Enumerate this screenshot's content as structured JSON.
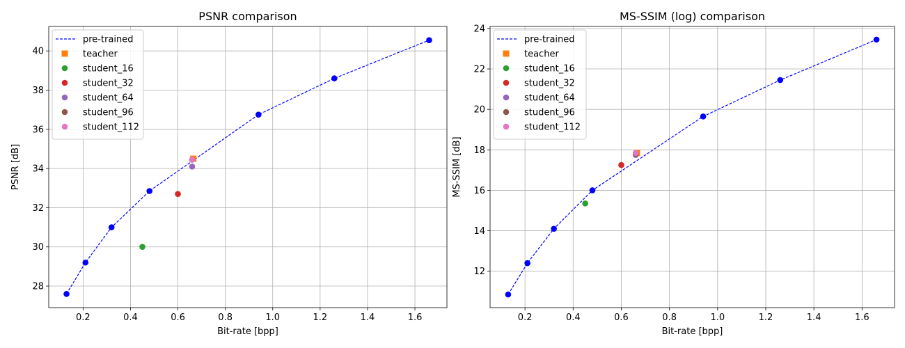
{
  "colors": {
    "pretrained": "#0000ff",
    "teacher": "#ff7f0e",
    "student_16": "#2ca02c",
    "student_32": "#d62728",
    "student_64": "#9467bd",
    "student_96": "#8c564b",
    "student_112": "#e377c2",
    "grid": "#b0b0b0"
  },
  "chart_data": [
    {
      "type": "scatter",
      "title": "PSNR comparison",
      "xlabel": "Bit-rate [bpp]",
      "ylabel": "PSNR [dB]",
      "xlim": [
        0.055,
        1.735
      ],
      "ylim": [
        26.9,
        41.25
      ],
      "xticks": [
        0.2,
        0.4,
        0.6,
        0.8,
        1.0,
        1.2,
        1.4,
        1.6
      ],
      "xtick_labels": [
        "0.2",
        "0.4",
        "0.6",
        "0.8",
        "1.0",
        "1.2",
        "1.4",
        "1.6"
      ],
      "yticks": [
        28,
        30,
        32,
        34,
        36,
        38,
        40
      ],
      "ytick_labels": [
        "28",
        "30",
        "32",
        "34",
        "36",
        "38",
        "40"
      ],
      "grid": true,
      "legend_position": "top-left",
      "series": [
        {
          "name": "pre-trained",
          "color_key": "pretrained",
          "style": "dashed-line-markers",
          "marker": "circle",
          "x": [
            0.13,
            0.21,
            0.32,
            0.48,
            0.94,
            1.26,
            1.66
          ],
          "y": [
            27.6,
            29.2,
            31.0,
            32.85,
            36.75,
            38.6,
            40.55
          ]
        },
        {
          "name": "teacher",
          "color_key": "teacher",
          "style": "marker",
          "marker": "square",
          "x": [
            0.665
          ],
          "y": [
            34.5
          ]
        },
        {
          "name": "student_16",
          "color_key": "student_16",
          "style": "marker",
          "marker": "circle",
          "x": [
            0.45
          ],
          "y": [
            30.0
          ]
        },
        {
          "name": "student_32",
          "color_key": "student_32",
          "style": "marker",
          "marker": "circle",
          "x": [
            0.6
          ],
          "y": [
            32.7
          ]
        },
        {
          "name": "student_64",
          "color_key": "student_64",
          "style": "marker",
          "marker": "circle",
          "x": [
            0.66
          ],
          "y": [
            34.1
          ]
        },
        {
          "name": "student_96",
          "color_key": "student_96",
          "style": "marker",
          "marker": "circle",
          "x": [
            0.66
          ],
          "y": [
            34.45
          ]
        },
        {
          "name": "student_112",
          "color_key": "student_112",
          "style": "marker",
          "marker": "circle",
          "x": [
            0.66
          ],
          "y": [
            34.45
          ]
        }
      ]
    },
    {
      "type": "scatter",
      "title": "MS-SSIM (log) comparison",
      "xlabel": "Bit-rate [bpp]",
      "ylabel": "MS-SSIM [dB]",
      "xlim": [
        0.055,
        1.735
      ],
      "ylim": [
        10.2,
        24.1
      ],
      "xticks": [
        0.2,
        0.4,
        0.6,
        0.8,
        1.0,
        1.2,
        1.4,
        1.6
      ],
      "xtick_labels": [
        "0.2",
        "0.4",
        "0.6",
        "0.8",
        "1.0",
        "1.2",
        "1.4",
        "1.6"
      ],
      "yticks": [
        12,
        14,
        16,
        18,
        20,
        22,
        24
      ],
      "ytick_labels": [
        "12",
        "14",
        "16",
        "18",
        "20",
        "22",
        "24"
      ],
      "grid": true,
      "legend_position": "top-left",
      "series": [
        {
          "name": "pre-trained",
          "color_key": "pretrained",
          "style": "dashed-line-markers",
          "marker": "circle",
          "x": [
            0.13,
            0.21,
            0.32,
            0.48,
            0.94,
            1.26,
            1.66
          ],
          "y": [
            10.85,
            12.4,
            14.1,
            16.0,
            19.65,
            21.45,
            23.45
          ]
        },
        {
          "name": "teacher",
          "color_key": "teacher",
          "style": "marker",
          "marker": "square",
          "x": [
            0.665
          ],
          "y": [
            17.85
          ]
        },
        {
          "name": "student_16",
          "color_key": "student_16",
          "style": "marker",
          "marker": "circle",
          "x": [
            0.45
          ],
          "y": [
            15.35
          ]
        },
        {
          "name": "student_32",
          "color_key": "student_32",
          "style": "marker",
          "marker": "circle",
          "x": [
            0.6
          ],
          "y": [
            17.25
          ]
        },
        {
          "name": "student_64",
          "color_key": "student_64",
          "style": "marker",
          "marker": "circle",
          "x": [
            0.66
          ],
          "y": [
            17.75
          ]
        },
        {
          "name": "student_96",
          "color_key": "student_96",
          "style": "marker",
          "marker": "circle",
          "x": [
            0.66
          ],
          "y": [
            17.8
          ]
        },
        {
          "name": "student_112",
          "color_key": "student_112",
          "style": "marker",
          "marker": "circle",
          "x": [
            0.66
          ],
          "y": [
            17.85
          ]
        }
      ]
    }
  ]
}
